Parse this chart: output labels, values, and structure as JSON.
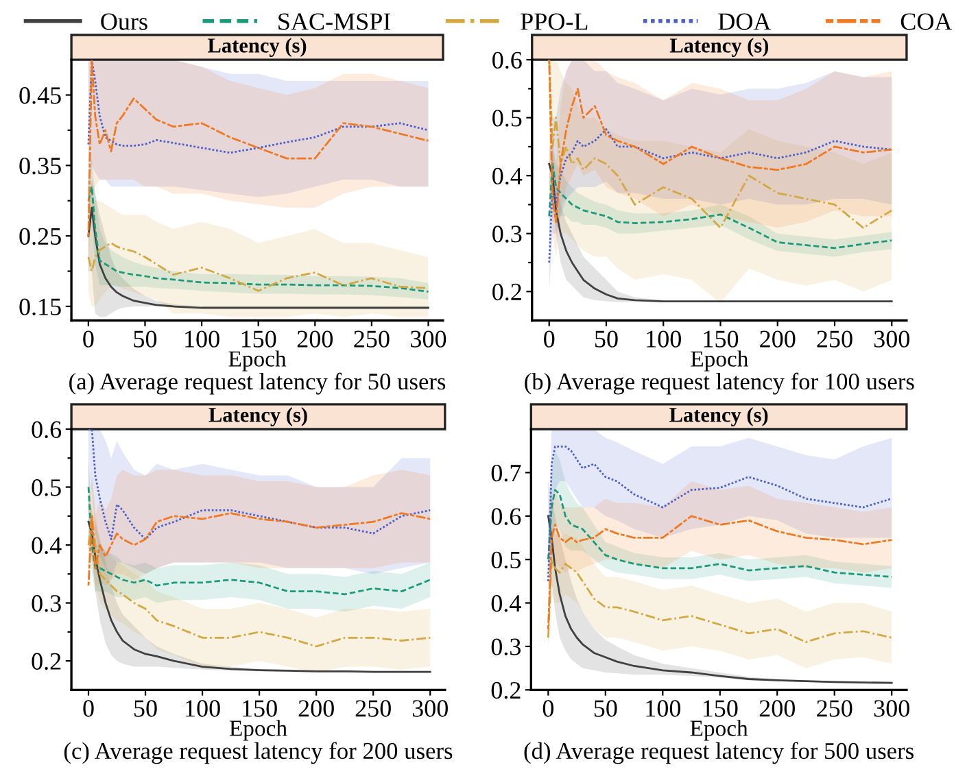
{
  "chart_data": [
    {
      "type": "line",
      "title": "Latency (s)",
      "xlabel": "Epoch",
      "annotations": [
        "(a) Average request latency for 50 users"
      ],
      "legend": "top",
      "x": [
        0,
        3,
        6,
        10,
        15,
        20,
        25,
        30,
        40,
        50,
        60,
        75,
        100,
        125,
        150,
        175,
        200,
        225,
        250,
        275,
        300
      ],
      "xlim": [
        -15,
        313
      ],
      "xticks": [
        0,
        50,
        100,
        150,
        200,
        250,
        300
      ],
      "ylim": [
        0.13,
        0.5
      ],
      "yticks": [
        0.15,
        {
          "value": 0.2,
          "label": null
        },
        0.25,
        {
          "value": 0.3,
          "label": null
        },
        0.35,
        {
          "value": 0.4,
          "label": null
        },
        0.45
      ],
      "series": [
        {
          "name": "Ours",
          "color": "#404040",
          "line_style": "solid",
          "values": [
            0.25,
            0.29,
            0.25,
            0.21,
            0.19,
            0.178,
            0.17,
            0.165,
            0.158,
            0.155,
            0.152,
            0.15,
            0.148,
            0.148,
            0.148,
            0.148,
            0.148,
            0.148,
            0.148,
            0.148,
            0.148
          ],
          "lower": [
            0.2,
            0.2,
            0.14,
            0.135,
            0.135,
            0.14,
            0.145,
            0.148,
            0.15,
            0.15,
            0.15,
            0.148,
            0.147,
            0.147,
            0.147,
            0.147,
            0.147,
            0.147,
            0.147,
            0.147,
            0.147
          ],
          "upper": [
            0.3,
            0.33,
            0.31,
            0.28,
            0.25,
            0.22,
            0.2,
            0.19,
            0.175,
            0.165,
            0.158,
            0.153,
            0.15,
            0.15,
            0.15,
            0.15,
            0.15,
            0.15,
            0.15,
            0.15,
            0.15
          ]
        },
        {
          "name": "SAC-MSPI",
          "color": "#1a9a7a",
          "line_style": "dashed",
          "values": [
            0.3,
            0.32,
            0.26,
            0.215,
            0.21,
            0.205,
            0.2,
            0.198,
            0.195,
            0.193,
            0.19,
            0.188,
            0.184,
            0.183,
            0.181,
            0.181,
            0.18,
            0.18,
            0.179,
            0.176,
            0.171
          ],
          "lower": [
            0.25,
            0.27,
            0.21,
            0.18,
            0.18,
            0.18,
            0.178,
            0.178,
            0.178,
            0.178,
            0.176,
            0.175,
            0.172,
            0.17,
            0.168,
            0.168,
            0.167,
            0.167,
            0.166,
            0.163,
            0.16
          ],
          "upper": [
            0.34,
            0.36,
            0.31,
            0.26,
            0.24,
            0.23,
            0.225,
            0.22,
            0.213,
            0.208,
            0.205,
            0.2,
            0.196,
            0.196,
            0.195,
            0.195,
            0.193,
            0.193,
            0.192,
            0.19,
            0.183
          ]
        },
        {
          "name": "PPO-L",
          "color": "#d4a840",
          "line_style": "dashdot",
          "values": [
            0.22,
            0.2,
            0.22,
            0.23,
            0.235,
            0.24,
            0.235,
            0.232,
            0.228,
            0.22,
            0.21,
            0.195,
            0.205,
            0.19,
            0.172,
            0.19,
            0.198,
            0.18,
            0.19,
            0.178,
            0.176
          ],
          "lower": [
            0.17,
            0.15,
            0.15,
            0.16,
            0.17,
            0.18,
            0.18,
            0.175,
            0.17,
            0.165,
            0.16,
            0.14,
            0.14,
            0.135,
            0.135,
            0.135,
            0.14,
            0.135,
            0.14,
            0.135,
            0.135
          ],
          "upper": [
            0.3,
            0.3,
            0.3,
            0.3,
            0.295,
            0.29,
            0.285,
            0.28,
            0.28,
            0.28,
            0.27,
            0.26,
            0.27,
            0.26,
            0.24,
            0.25,
            0.26,
            0.24,
            0.24,
            0.23,
            0.22
          ]
        },
        {
          "name": "DOA",
          "color": "#4a5fcc",
          "line_style": "dotted",
          "values": [
            0.38,
            0.5,
            0.47,
            0.42,
            0.39,
            0.385,
            0.38,
            0.378,
            0.378,
            0.38,
            0.386,
            0.382,
            0.375,
            0.368,
            0.375,
            0.383,
            0.39,
            0.405,
            0.405,
            0.41,
            0.4
          ],
          "lower": [
            0.3,
            0.35,
            0.34,
            0.33,
            0.33,
            0.32,
            0.32,
            0.32,
            0.32,
            0.32,
            0.32,
            0.32,
            0.315,
            0.31,
            0.305,
            0.31,
            0.32,
            0.33,
            0.33,
            0.32,
            0.32
          ],
          "upper": [
            0.5,
            0.5,
            0.5,
            0.5,
            0.5,
            0.5,
            0.5,
            0.5,
            0.5,
            0.5,
            0.5,
            0.5,
            0.49,
            0.48,
            0.48,
            0.47,
            0.47,
            0.47,
            0.47,
            0.47,
            0.47
          ]
        },
        {
          "name": "COA",
          "color": "#f07820",
          "line_style": "longdash",
          "values": [
            0.25,
            0.5,
            0.42,
            0.38,
            0.4,
            0.37,
            0.41,
            0.42,
            0.445,
            0.43,
            0.415,
            0.405,
            0.41,
            0.39,
            0.375,
            0.36,
            0.36,
            0.41,
            0.405,
            0.395,
            0.385
          ],
          "lower": [
            0.2,
            0.3,
            0.32,
            0.33,
            0.33,
            0.33,
            0.33,
            0.33,
            0.33,
            0.32,
            0.32,
            0.31,
            0.31,
            0.3,
            0.295,
            0.29,
            0.29,
            0.31,
            0.32,
            0.32,
            0.32
          ],
          "upper": [
            0.5,
            0.5,
            0.5,
            0.5,
            0.5,
            0.5,
            0.5,
            0.5,
            0.5,
            0.5,
            0.5,
            0.5,
            0.49,
            0.47,
            0.46,
            0.45,
            0.46,
            0.48,
            0.48,
            0.47,
            0.46
          ]
        }
      ]
    },
    {
      "type": "line",
      "title": "Latency (s)",
      "xlabel": "Epoch",
      "annotations": [
        "(b) Average request latency for 100 users"
      ],
      "x": [
        0,
        3,
        6,
        10,
        15,
        20,
        25,
        30,
        40,
        50,
        60,
        75,
        100,
        125,
        150,
        175,
        200,
        225,
        250,
        275,
        300
      ],
      "xlim": [
        -15,
        313
      ],
      "xticks": [
        0,
        50,
        100,
        150,
        200,
        250,
        300
      ],
      "ylim": [
        0.15,
        0.6
      ],
      "yticks": [
        0.2,
        {
          "value": 0.25,
          "label": null
        },
        0.3,
        {
          "value": 0.35,
          "label": null
        },
        0.4,
        {
          "value": 0.45,
          "label": null
        },
        0.5,
        {
          "value": 0.55,
          "label": null
        },
        0.6
      ],
      "series": [
        {
          "color": "#404040",
          "line_style": "solid",
          "values": [
            0.42,
            0.4,
            0.34,
            0.3,
            0.27,
            0.25,
            0.235,
            0.22,
            0.205,
            0.195,
            0.188,
            0.185,
            0.183,
            0.183,
            0.183,
            0.183,
            0.183,
            0.183,
            0.183,
            0.183,
            0.183
          ],
          "lower": [
            0.38,
            0.36,
            0.3,
            0.25,
            0.22,
            0.21,
            0.2,
            0.19,
            0.185,
            0.183,
            0.182,
            0.182,
            0.182,
            0.182,
            0.182,
            0.182,
            0.182,
            0.182,
            0.182,
            0.182,
            0.182
          ],
          "upper": [
            0.45,
            0.44,
            0.39,
            0.35,
            0.32,
            0.3,
            0.28,
            0.26,
            0.24,
            0.22,
            0.2,
            0.19,
            0.185,
            0.185,
            0.185,
            0.185,
            0.185,
            0.185,
            0.185,
            0.185,
            0.185
          ]
        },
        {
          "color": "#1a9a7a",
          "line_style": "dashed",
          "values": [
            0.33,
            0.42,
            0.38,
            0.37,
            0.36,
            0.35,
            0.345,
            0.34,
            0.335,
            0.33,
            0.32,
            0.318,
            0.32,
            0.325,
            0.333,
            0.31,
            0.285,
            0.28,
            0.275,
            0.282,
            0.288
          ],
          "lower": [
            0.29,
            0.37,
            0.34,
            0.33,
            0.33,
            0.32,
            0.32,
            0.315,
            0.315,
            0.31,
            0.3,
            0.3,
            0.305,
            0.31,
            0.315,
            0.29,
            0.27,
            0.265,
            0.26,
            0.268,
            0.273
          ],
          "upper": [
            0.37,
            0.46,
            0.42,
            0.41,
            0.39,
            0.38,
            0.37,
            0.365,
            0.355,
            0.35,
            0.34,
            0.335,
            0.335,
            0.34,
            0.35,
            0.33,
            0.3,
            0.295,
            0.29,
            0.296,
            0.303
          ]
        },
        {
          "color": "#d4a840",
          "line_style": "dashdot",
          "values": [
            0.6,
            0.45,
            0.5,
            0.42,
            0.45,
            0.42,
            0.43,
            0.41,
            0.43,
            0.42,
            0.4,
            0.35,
            0.38,
            0.36,
            0.31,
            0.4,
            0.37,
            0.36,
            0.35,
            0.31,
            0.34
          ],
          "lower": [
            0.35,
            0.32,
            0.32,
            0.3,
            0.3,
            0.29,
            0.28,
            0.27,
            0.26,
            0.26,
            0.24,
            0.22,
            0.23,
            0.22,
            0.18,
            0.24,
            0.22,
            0.21,
            0.22,
            0.2,
            0.22
          ],
          "upper": [
            0.6,
            0.6,
            0.6,
            0.58,
            0.56,
            0.55,
            0.52,
            0.5,
            0.5,
            0.48,
            0.47,
            0.46,
            0.46,
            0.45,
            0.44,
            0.48,
            0.46,
            0.45,
            0.44,
            0.42,
            0.44
          ]
        },
        {
          "color": "#4a5fcc",
          "line_style": "dotted",
          "values": [
            0.25,
            0.38,
            0.35,
            0.4,
            0.43,
            0.44,
            0.46,
            0.45,
            0.46,
            0.48,
            0.45,
            0.45,
            0.43,
            0.44,
            0.43,
            0.44,
            0.43,
            0.44,
            0.46,
            0.45,
            0.445
          ],
          "lower": [
            0.2,
            0.3,
            0.3,
            0.33,
            0.36,
            0.37,
            0.38,
            0.38,
            0.38,
            0.39,
            0.37,
            0.37,
            0.36,
            0.36,
            0.35,
            0.36,
            0.35,
            0.35,
            0.36,
            0.36,
            0.35
          ],
          "upper": [
            0.3,
            0.5,
            0.5,
            0.55,
            0.58,
            0.6,
            0.6,
            0.6,
            0.58,
            0.58,
            0.56,
            0.55,
            0.53,
            0.55,
            0.54,
            0.55,
            0.55,
            0.56,
            0.58,
            0.57,
            0.57
          ]
        },
        {
          "color": "#f07820",
          "line_style": "longdash",
          "values": [
            0.6,
            0.36,
            0.32,
            0.42,
            0.48,
            0.52,
            0.55,
            0.5,
            0.52,
            0.47,
            0.46,
            0.45,
            0.42,
            0.45,
            0.43,
            0.415,
            0.41,
            0.42,
            0.45,
            0.44,
            0.445
          ],
          "lower": [
            0.5,
            0.3,
            0.26,
            0.34,
            0.38,
            0.4,
            0.42,
            0.4,
            0.41,
            0.38,
            0.37,
            0.36,
            0.33,
            0.35,
            0.33,
            0.32,
            0.31,
            0.32,
            0.34,
            0.33,
            0.33
          ],
          "upper": [
            0.6,
            0.45,
            0.42,
            0.52,
            0.58,
            0.6,
            0.6,
            0.6,
            0.6,
            0.58,
            0.57,
            0.56,
            0.53,
            0.56,
            0.55,
            0.53,
            0.53,
            0.55,
            0.58,
            0.57,
            0.58
          ]
        }
      ]
    },
    {
      "type": "line",
      "title": "Latency (s)",
      "xlabel": "Epoch",
      "annotations": [
        "(c) Average request latency for 200 users"
      ],
      "x": [
        0,
        3,
        6,
        10,
        15,
        20,
        25,
        30,
        40,
        50,
        60,
        75,
        100,
        125,
        150,
        175,
        200,
        225,
        250,
        275,
        300
      ],
      "xlim": [
        -15,
        313
      ],
      "xticks": [
        0,
        50,
        100,
        150,
        200,
        250,
        300
      ],
      "ylim": [
        0.15,
        0.6
      ],
      "yticks": [
        0.2,
        {
          "value": 0.25,
          "label": null
        },
        0.3,
        {
          "value": 0.35,
          "label": null
        },
        0.4,
        {
          "value": 0.45,
          "label": null
        },
        0.5,
        {
          "value": 0.55,
          "label": null
        },
        0.6
      ],
      "series": [
        {
          "color": "#404040",
          "line_style": "solid",
          "values": [
            0.44,
            0.42,
            0.38,
            0.34,
            0.3,
            0.27,
            0.25,
            0.235,
            0.22,
            0.212,
            0.208,
            0.2,
            0.19,
            0.186,
            0.184,
            0.183,
            0.182,
            0.182,
            0.181,
            0.181,
            0.181
          ],
          "lower": [
            0.4,
            0.38,
            0.32,
            0.27,
            0.23,
            0.21,
            0.2,
            0.195,
            0.19,
            0.19,
            0.19,
            0.188,
            0.185,
            0.183,
            0.182,
            0.181,
            0.181,
            0.18,
            0.18,
            0.18,
            0.18
          ],
          "upper": [
            0.48,
            0.46,
            0.44,
            0.41,
            0.37,
            0.33,
            0.3,
            0.28,
            0.26,
            0.24,
            0.225,
            0.212,
            0.195,
            0.19,
            0.186,
            0.185,
            0.184,
            0.184,
            0.183,
            0.183,
            0.183
          ]
        },
        {
          "color": "#1a9a7a",
          "line_style": "dashed",
          "values": [
            0.5,
            0.4,
            0.36,
            0.36,
            0.355,
            0.35,
            0.345,
            0.34,
            0.335,
            0.34,
            0.33,
            0.335,
            0.335,
            0.34,
            0.335,
            0.32,
            0.32,
            0.315,
            0.325,
            0.32,
            0.34
          ],
          "lower": [
            0.45,
            0.35,
            0.32,
            0.32,
            0.32,
            0.315,
            0.31,
            0.31,
            0.305,
            0.31,
            0.3,
            0.305,
            0.305,
            0.31,
            0.305,
            0.29,
            0.29,
            0.285,
            0.295,
            0.29,
            0.31
          ],
          "upper": [
            0.55,
            0.45,
            0.4,
            0.4,
            0.39,
            0.385,
            0.38,
            0.37,
            0.365,
            0.37,
            0.36,
            0.365,
            0.365,
            0.37,
            0.365,
            0.35,
            0.35,
            0.345,
            0.355,
            0.35,
            0.37
          ]
        },
        {
          "color": "#d4a840",
          "line_style": "dashdot",
          "values": [
            0.4,
            0.45,
            0.4,
            0.35,
            0.34,
            0.33,
            0.32,
            0.315,
            0.3,
            0.29,
            0.27,
            0.26,
            0.24,
            0.24,
            0.25,
            0.24,
            0.225,
            0.24,
            0.24,
            0.235,
            0.24
          ],
          "lower": [
            0.35,
            0.38,
            0.34,
            0.3,
            0.29,
            0.28,
            0.27,
            0.265,
            0.25,
            0.24,
            0.22,
            0.21,
            0.19,
            0.19,
            0.2,
            0.19,
            0.18,
            0.19,
            0.19,
            0.185,
            0.19
          ],
          "upper": [
            0.45,
            0.52,
            0.46,
            0.4,
            0.39,
            0.38,
            0.37,
            0.365,
            0.35,
            0.34,
            0.32,
            0.31,
            0.29,
            0.29,
            0.3,
            0.29,
            0.275,
            0.29,
            0.29,
            0.285,
            0.29
          ]
        },
        {
          "color": "#4a5fcc",
          "line_style": "dotted",
          "values": [
            0.6,
            0.6,
            0.52,
            0.48,
            0.44,
            0.41,
            0.47,
            0.46,
            0.43,
            0.41,
            0.43,
            0.44,
            0.46,
            0.46,
            0.45,
            0.44,
            0.43,
            0.43,
            0.42,
            0.45,
            0.46
          ],
          "lower": [
            0.45,
            0.5,
            0.42,
            0.38,
            0.36,
            0.34,
            0.37,
            0.37,
            0.36,
            0.35,
            0.36,
            0.37,
            0.37,
            0.37,
            0.37,
            0.36,
            0.36,
            0.36,
            0.35,
            0.36,
            0.37
          ],
          "upper": [
            0.6,
            0.6,
            0.6,
            0.6,
            0.58,
            0.55,
            0.58,
            0.56,
            0.53,
            0.52,
            0.54,
            0.53,
            0.54,
            0.53,
            0.52,
            0.52,
            0.5,
            0.5,
            0.5,
            0.55,
            0.55
          ]
        },
        {
          "color": "#f07820",
          "line_style": "longdash",
          "values": [
            0.33,
            0.45,
            0.36,
            0.4,
            0.38,
            0.4,
            0.42,
            0.41,
            0.4,
            0.41,
            0.44,
            0.45,
            0.445,
            0.455,
            0.445,
            0.44,
            0.43,
            0.435,
            0.44,
            0.455,
            0.445
          ],
          "lower": [
            0.33,
            0.38,
            0.32,
            0.34,
            0.33,
            0.34,
            0.35,
            0.35,
            0.34,
            0.35,
            0.36,
            0.37,
            0.37,
            0.37,
            0.36,
            0.36,
            0.36,
            0.36,
            0.36,
            0.37,
            0.37
          ],
          "upper": [
            0.4,
            0.52,
            0.45,
            0.48,
            0.46,
            0.48,
            0.52,
            0.53,
            0.52,
            0.52,
            0.53,
            0.53,
            0.52,
            0.52,
            0.51,
            0.51,
            0.5,
            0.5,
            0.52,
            0.53,
            0.52
          ]
        }
      ]
    },
    {
      "type": "line",
      "title": "Latency (s)",
      "xlabel": "Epoch",
      "annotations": [
        "(d) Average request latency for 500 users"
      ],
      "x": [
        0,
        3,
        6,
        10,
        15,
        20,
        25,
        30,
        40,
        50,
        60,
        75,
        100,
        125,
        150,
        175,
        200,
        225,
        250,
        275,
        300
      ],
      "xlim": [
        -15,
        313
      ],
      "xticks": [
        0,
        50,
        100,
        150,
        200,
        250,
        300
      ],
      "ylim": [
        0.2,
        0.8
      ],
      "yticks": [
        0.2,
        0.3,
        0.4,
        0.5,
        0.6,
        0.7
      ],
      "series": [
        {
          "color": "#404040",
          "line_style": "solid",
          "values": [
            0.6,
            0.55,
            0.48,
            0.42,
            0.37,
            0.34,
            0.32,
            0.305,
            0.285,
            0.275,
            0.265,
            0.255,
            0.245,
            0.24,
            0.232,
            0.225,
            0.222,
            0.22,
            0.218,
            0.217,
            0.216
          ],
          "lower": [
            0.5,
            0.45,
            0.38,
            0.32,
            0.29,
            0.27,
            0.26,
            0.25,
            0.245,
            0.24,
            0.238,
            0.235,
            0.235,
            0.232,
            0.228,
            0.222,
            0.22,
            0.218,
            0.216,
            0.215,
            0.214
          ],
          "upper": [
            0.68,
            0.65,
            0.6,
            0.55,
            0.5,
            0.45,
            0.41,
            0.38,
            0.34,
            0.315,
            0.3,
            0.28,
            0.26,
            0.25,
            0.24,
            0.23,
            0.225,
            0.222,
            0.22,
            0.219,
            0.218
          ]
        },
        {
          "color": "#1a9a7a",
          "line_style": "dashed",
          "values": [
            0.5,
            0.62,
            0.66,
            0.65,
            0.6,
            0.58,
            0.575,
            0.57,
            0.54,
            0.51,
            0.5,
            0.49,
            0.48,
            0.48,
            0.49,
            0.475,
            0.48,
            0.485,
            0.47,
            0.465,
            0.46
          ],
          "lower": [
            0.45,
            0.55,
            0.58,
            0.57,
            0.53,
            0.52,
            0.52,
            0.52,
            0.5,
            0.48,
            0.47,
            0.465,
            0.455,
            0.455,
            0.465,
            0.45,
            0.455,
            0.46,
            0.445,
            0.44,
            0.435
          ],
          "upper": [
            0.55,
            0.7,
            0.75,
            0.73,
            0.68,
            0.65,
            0.63,
            0.62,
            0.58,
            0.54,
            0.53,
            0.515,
            0.505,
            0.505,
            0.515,
            0.5,
            0.505,
            0.51,
            0.495,
            0.49,
            0.485
          ]
        },
        {
          "color": "#d4a840",
          "line_style": "dashdot",
          "values": [
            0.32,
            0.5,
            0.48,
            0.47,
            0.49,
            0.48,
            0.47,
            0.45,
            0.41,
            0.39,
            0.39,
            0.38,
            0.36,
            0.37,
            0.35,
            0.33,
            0.34,
            0.31,
            0.33,
            0.335,
            0.32
          ],
          "lower": [
            0.3,
            0.42,
            0.4,
            0.4,
            0.42,
            0.41,
            0.4,
            0.38,
            0.34,
            0.32,
            0.32,
            0.31,
            0.29,
            0.3,
            0.29,
            0.27,
            0.28,
            0.25,
            0.27,
            0.275,
            0.26
          ],
          "upper": [
            0.35,
            0.58,
            0.56,
            0.55,
            0.56,
            0.55,
            0.55,
            0.53,
            0.49,
            0.46,
            0.46,
            0.45,
            0.43,
            0.44,
            0.42,
            0.4,
            0.41,
            0.38,
            0.4,
            0.4,
            0.38
          ]
        },
        {
          "color": "#4a5fcc",
          "line_style": "dotted",
          "values": [
            0.45,
            0.72,
            0.76,
            0.76,
            0.76,
            0.75,
            0.73,
            0.71,
            0.72,
            0.69,
            0.68,
            0.65,
            0.62,
            0.66,
            0.665,
            0.69,
            0.67,
            0.64,
            0.63,
            0.62,
            0.64
          ],
          "lower": [
            0.4,
            0.6,
            0.66,
            0.68,
            0.68,
            0.66,
            0.64,
            0.62,
            0.62,
            0.6,
            0.59,
            0.57,
            0.55,
            0.57,
            0.58,
            0.6,
            0.59,
            0.56,
            0.55,
            0.55,
            0.55
          ],
          "upper": [
            0.5,
            0.8,
            0.8,
            0.8,
            0.8,
            0.8,
            0.8,
            0.8,
            0.8,
            0.78,
            0.77,
            0.75,
            0.72,
            0.76,
            0.76,
            0.78,
            0.76,
            0.74,
            0.73,
            0.76,
            0.78
          ]
        },
        {
          "color": "#f07820",
          "line_style": "longdash",
          "values": [
            0.34,
            0.55,
            0.58,
            0.55,
            0.54,
            0.55,
            0.54,
            0.545,
            0.55,
            0.57,
            0.56,
            0.55,
            0.55,
            0.6,
            0.58,
            0.59,
            0.565,
            0.55,
            0.545,
            0.535,
            0.545
          ],
          "lower": [
            0.3,
            0.48,
            0.5,
            0.48,
            0.47,
            0.48,
            0.47,
            0.48,
            0.49,
            0.5,
            0.5,
            0.49,
            0.48,
            0.52,
            0.5,
            0.51,
            0.49,
            0.48,
            0.48,
            0.47,
            0.48
          ],
          "upper": [
            0.4,
            0.62,
            0.66,
            0.63,
            0.62,
            0.62,
            0.62,
            0.62,
            0.62,
            0.64,
            0.63,
            0.63,
            0.62,
            0.68,
            0.66,
            0.67,
            0.64,
            0.63,
            0.62,
            0.61,
            0.62
          ]
        }
      ]
    }
  ]
}
